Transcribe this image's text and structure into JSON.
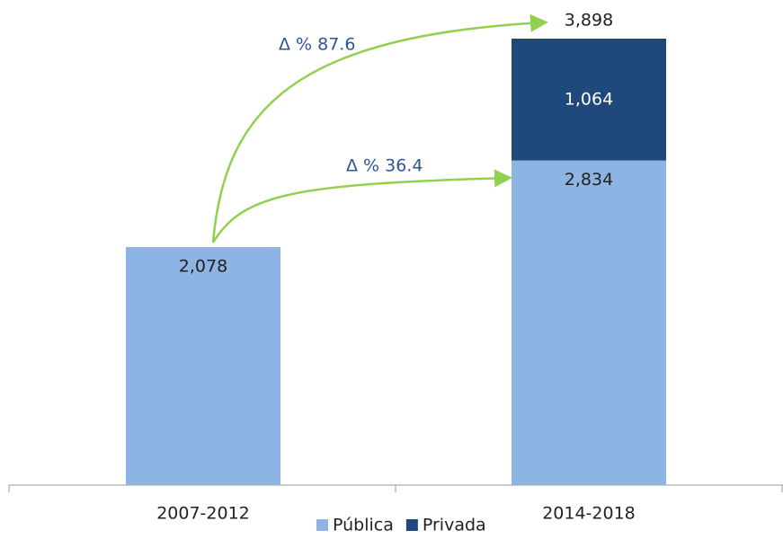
{
  "chart_data": {
    "type": "stacked_bar",
    "categories": [
      "2007-2012",
      "2014-2018"
    ],
    "series": [
      {
        "name": "Pública",
        "color": "#8eb4e3",
        "values": [
          2078,
          2834
        ],
        "value_labels": [
          "2,078",
          "2,834"
        ]
      },
      {
        "name": "Privada",
        "color": "#1f497d",
        "values": [
          null,
          1064
        ],
        "value_labels": [
          null,
          "1,064"
        ]
      }
    ],
    "totals": [
      null,
      3898
    ],
    "total_labels": [
      null,
      "3,898"
    ],
    "annotations": [
      "Δ % 87.6",
      "Δ % 36.4"
    ],
    "ylim": [
      0,
      4200
    ],
    "legend": "bottom"
  }
}
